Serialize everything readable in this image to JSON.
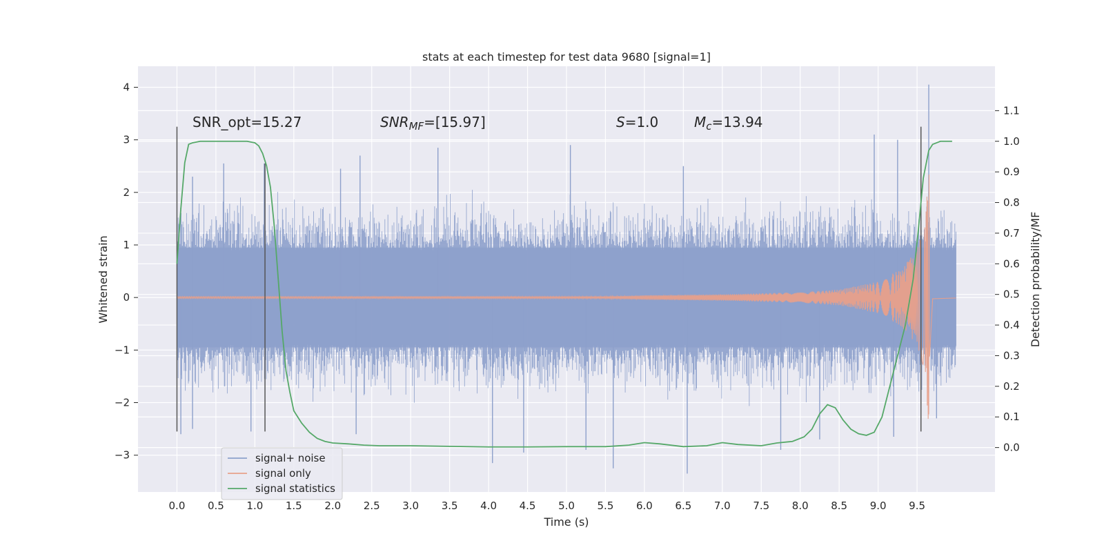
{
  "chart_data": {
    "type": "line",
    "title": "stats at each timestep for test data 9680 [signal=1]",
    "xlabel": "Time (s)",
    "ylabel": "Whitened strain",
    "y2label": "Detection probability/MF",
    "xlim": [
      -0.5,
      10.5
    ],
    "ylim": [
      -3.7,
      4.4
    ],
    "y2lim": [
      -0.145,
      1.245
    ],
    "xticks": [
      "0.0",
      "0.5",
      "1.0",
      "1.5",
      "2.0",
      "2.5",
      "3.0",
      "3.5",
      "4.0",
      "4.5",
      "5.0",
      "5.5",
      "6.0",
      "6.5",
      "7.0",
      "7.5",
      "8.0",
      "8.5",
      "9.0",
      "9.5"
    ],
    "yticks": [
      "4",
      "3",
      "2",
      "1",
      "0",
      "−1",
      "−2",
      "−3"
    ],
    "y2ticks": [
      "1.1",
      "1.0",
      "0.9",
      "0.8",
      "0.7",
      "0.6",
      "0.5",
      "0.4",
      "0.3",
      "0.2",
      "0.1",
      "0.0"
    ],
    "grid": true,
    "legend_position": "lower-left",
    "annotations": {
      "snr_opt": "SNR_opt=15.27",
      "snr_mf_label": "SNR",
      "snr_mf_sub": "MF",
      "snr_mf_value": "=[15.97]",
      "s_label": "S",
      "s_value": "=1.0",
      "mc_label": "M",
      "mc_sub": "c",
      "mc_value": "=13.94"
    },
    "vertical_markers": [
      {
        "x": 0.0,
        "ymin": -2.55,
        "ymax": 3.25
      },
      {
        "x": 1.13,
        "ymin": -2.55,
        "ymax": 2.55
      },
      {
        "x": 9.55,
        "ymin": -2.55,
        "ymax": 3.25
      }
    ],
    "series": [
      {
        "name": "signal+ noise",
        "color": "#8da0cb",
        "axis": "left",
        "x_range": [
          0.0,
          10.0
        ],
        "envelope_upper": [
          1.5,
          1.5,
          1.5,
          1.5,
          1.5,
          1.5,
          1.5,
          1.5,
          1.5,
          1.5,
          1.5,
          1.5,
          1.5,
          1.5,
          1.5,
          1.5,
          1.5,
          1.5,
          1.5,
          1.6,
          1.5
        ],
        "envelope_lower": [
          -1.5,
          -1.5,
          -1.5,
          -1.5,
          -1.5,
          -1.5,
          -1.5,
          -1.5,
          -1.5,
          -1.5,
          -1.5,
          -1.5,
          -1.5,
          -1.5,
          -1.5,
          -1.5,
          -1.5,
          -1.5,
          -1.5,
          -1.6,
          -1.5
        ],
        "spikes": [
          {
            "x": 0.2,
            "y": 2.3
          },
          {
            "x": 0.6,
            "y": 2.55
          },
          {
            "x": 1.12,
            "y": 2.55
          },
          {
            "x": 2.1,
            "y": 2.45
          },
          {
            "x": 2.35,
            "y": 2.7
          },
          {
            "x": 3.35,
            "y": 2.85
          },
          {
            "x": 4.05,
            "y": -3.15
          },
          {
            "x": 4.45,
            "y": -2.95
          },
          {
            "x": 5.05,
            "y": 2.9
          },
          {
            "x": 5.25,
            "y": -2.9
          },
          {
            "x": 5.6,
            "y": -3.25
          },
          {
            "x": 6.5,
            "y": 2.5
          },
          {
            "x": 6.55,
            "y": -3.35
          },
          {
            "x": 7.75,
            "y": -2.9
          },
          {
            "x": 8.25,
            "y": -2.7
          },
          {
            "x": 8.95,
            "y": 3.1
          },
          {
            "x": 9.25,
            "y": 3.0
          },
          {
            "x": 9.65,
            "y": 4.05
          },
          {
            "x": 9.75,
            "y": -2.3
          },
          {
            "x": 0.05,
            "y": -2.6
          },
          {
            "x": 0.2,
            "y": -2.5
          },
          {
            "x": 0.95,
            "y": -2.55
          },
          {
            "x": 2.3,
            "y": -2.6
          },
          {
            "x": 9.2,
            "y": -2.65
          }
        ]
      },
      {
        "name": "signal only",
        "color": "#e8a08a",
        "axis": "left",
        "amplitude": [
          [
            0.0,
            0.02
          ],
          [
            5.5,
            0.02
          ],
          [
            6.0,
            0.04
          ],
          [
            7.0,
            0.06
          ],
          [
            8.0,
            0.1
          ],
          [
            8.5,
            0.15
          ],
          [
            9.0,
            0.3
          ],
          [
            9.3,
            0.55
          ],
          [
            9.5,
            0.9
          ],
          [
            9.6,
            1.4
          ],
          [
            9.64,
            2.3
          ],
          [
            9.66,
            2.4
          ],
          [
            9.7,
            0.05
          ],
          [
            10.0,
            0.02
          ]
        ]
      },
      {
        "name": "signal statistics",
        "color": "#55a868",
        "axis": "right",
        "points": [
          [
            0.0,
            0.6
          ],
          [
            0.05,
            0.78
          ],
          [
            0.1,
            0.93
          ],
          [
            0.15,
            0.99
          ],
          [
            0.2,
            0.995
          ],
          [
            0.3,
            1.0
          ],
          [
            0.5,
            1.0
          ],
          [
            0.7,
            1.0
          ],
          [
            0.9,
            1.0
          ],
          [
            1.0,
            0.995
          ],
          [
            1.05,
            0.985
          ],
          [
            1.1,
            0.96
          ],
          [
            1.15,
            0.92
          ],
          [
            1.2,
            0.85
          ],
          [
            1.25,
            0.72
          ],
          [
            1.3,
            0.55
          ],
          [
            1.35,
            0.38
          ],
          [
            1.4,
            0.25
          ],
          [
            1.45,
            0.18
          ],
          [
            1.5,
            0.12
          ],
          [
            1.6,
            0.08
          ],
          [
            1.7,
            0.05
          ],
          [
            1.8,
            0.03
          ],
          [
            1.9,
            0.02
          ],
          [
            2.0,
            0.015
          ],
          [
            2.2,
            0.012
          ],
          [
            2.4,
            0.008
          ],
          [
            2.6,
            0.006
          ],
          [
            3.0,
            0.006
          ],
          [
            3.5,
            0.004
          ],
          [
            4.0,
            0.002
          ],
          [
            4.5,
            0.002
          ],
          [
            5.0,
            0.003
          ],
          [
            5.5,
            0.003
          ],
          [
            5.8,
            0.008
          ],
          [
            6.0,
            0.016
          ],
          [
            6.2,
            0.012
          ],
          [
            6.5,
            0.003
          ],
          [
            6.8,
            0.006
          ],
          [
            7.0,
            0.016
          ],
          [
            7.2,
            0.01
          ],
          [
            7.5,
            0.006
          ],
          [
            7.7,
            0.015
          ],
          [
            7.9,
            0.02
          ],
          [
            8.05,
            0.035
          ],
          [
            8.15,
            0.06
          ],
          [
            8.25,
            0.11
          ],
          [
            8.35,
            0.14
          ],
          [
            8.45,
            0.13
          ],
          [
            8.55,
            0.09
          ],
          [
            8.65,
            0.06
          ],
          [
            8.75,
            0.045
          ],
          [
            8.85,
            0.04
          ],
          [
            8.95,
            0.05
          ],
          [
            9.05,
            0.1
          ],
          [
            9.15,
            0.2
          ],
          [
            9.25,
            0.3
          ],
          [
            9.35,
            0.4
          ],
          [
            9.45,
            0.55
          ],
          [
            9.52,
            0.72
          ],
          [
            9.58,
            0.88
          ],
          [
            9.65,
            0.97
          ],
          [
            9.7,
            0.99
          ],
          [
            9.8,
            1.0
          ],
          [
            9.95,
            1.0
          ]
        ]
      }
    ]
  }
}
